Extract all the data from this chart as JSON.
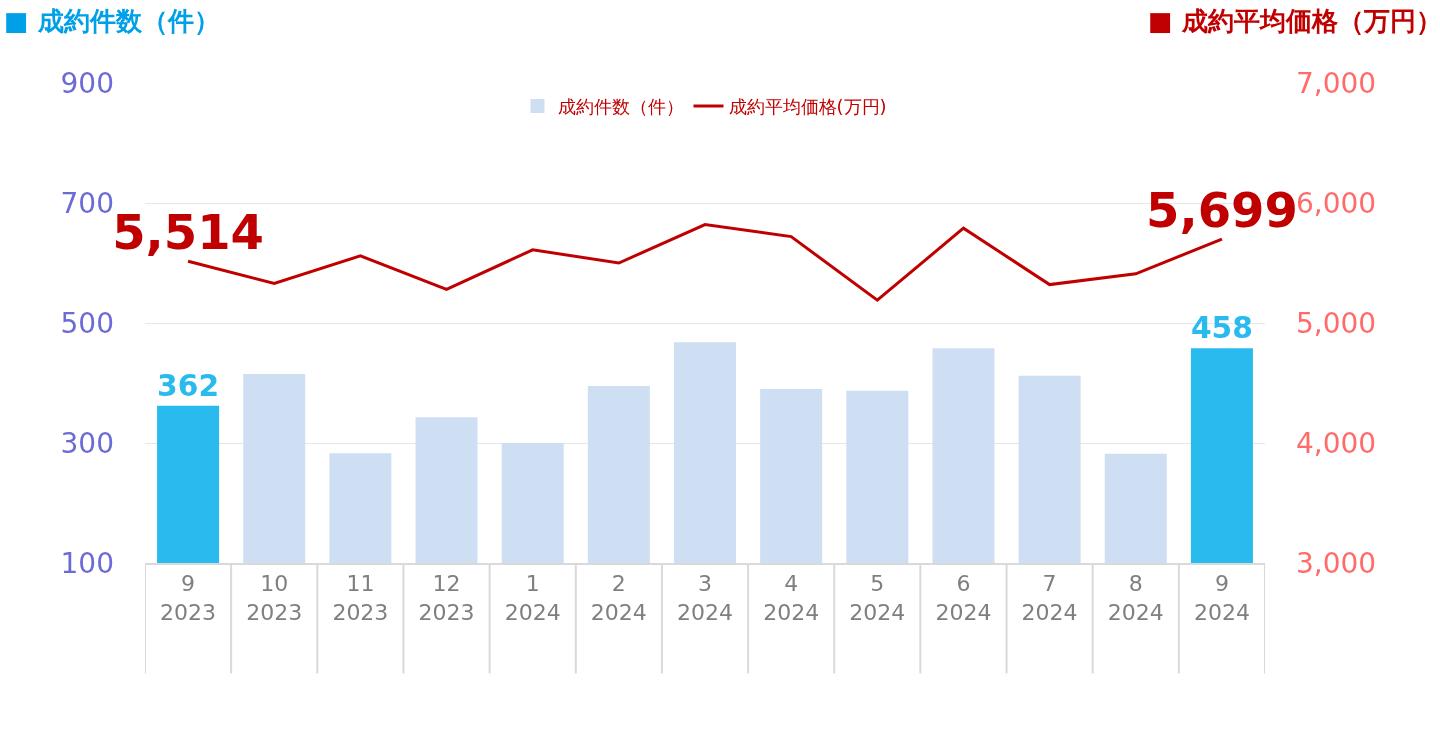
{
  "chart_data": {
    "type": "bar",
    "ylabel": "■ 成約件数（件）",
    "y2label": "■ 成約平均価格（万円）",
    "categories": [
      "9\n2023",
      "10\n2023",
      "11\n2023",
      "12\n2023",
      "1\n2024",
      "2\n2024",
      "3\n2024",
      "4\n2024",
      "5\n2024",
      "6\n2024",
      "7\n2024",
      "8\n2024",
      "9\n2024"
    ],
    "series": [
      {
        "name": "成約件数（件）",
        "color": "#cfdff3",
        "colors": [
          "#29bbee",
          "#cfdff3",
          "#cfdff3",
          "#cfdff3",
          "#cfdff3",
          "#cfdff3",
          "#cfdff3",
          "#cfdff3",
          "#cfdff3",
          "#cfdff3",
          "#cfdff3",
          "#cfdff3",
          "#29bbee"
        ],
        "values": [
          362,
          415,
          283,
          343,
          300,
          395,
          468,
          390,
          387,
          458,
          412,
          282,
          458
        ],
        "value_labels": [
          "362",
          null,
          null,
          null,
          null,
          null,
          null,
          null,
          null,
          null,
          null,
          null,
          "458"
        ]
      },
      {
        "name": "成約平均価格(万円)",
        "type": "line",
        "axis": "y2",
        "color": "#c00000",
        "marker": "none",
        "line_style": "solid",
        "values": [
          5514,
          5330,
          5560,
          5280,
          5610,
          5500,
          5820,
          5720,
          5190,
          5790,
          5320,
          5410,
          5699
        ],
        "value_labels": [
          "5,514",
          null,
          null,
          null,
          null,
          null,
          null,
          null,
          null,
          null,
          null,
          null,
          "5,699"
        ]
      }
    ],
    "ylim": [
      100,
      900
    ],
    "yticks": [
      100,
      300,
      500,
      700,
      900
    ],
    "y2lim": [
      3000,
      7000
    ],
    "y2ticks": [
      {
        "value": 3000,
        "label": "3,000"
      },
      {
        "value": 4000,
        "label": "4,000"
      },
      {
        "value": 5000,
        "label": "5,000"
      },
      {
        "value": 6000,
        "label": "6,000"
      },
      {
        "value": 7000,
        "label": "7,000"
      }
    ],
    "grid": "y",
    "legend": "top"
  }
}
